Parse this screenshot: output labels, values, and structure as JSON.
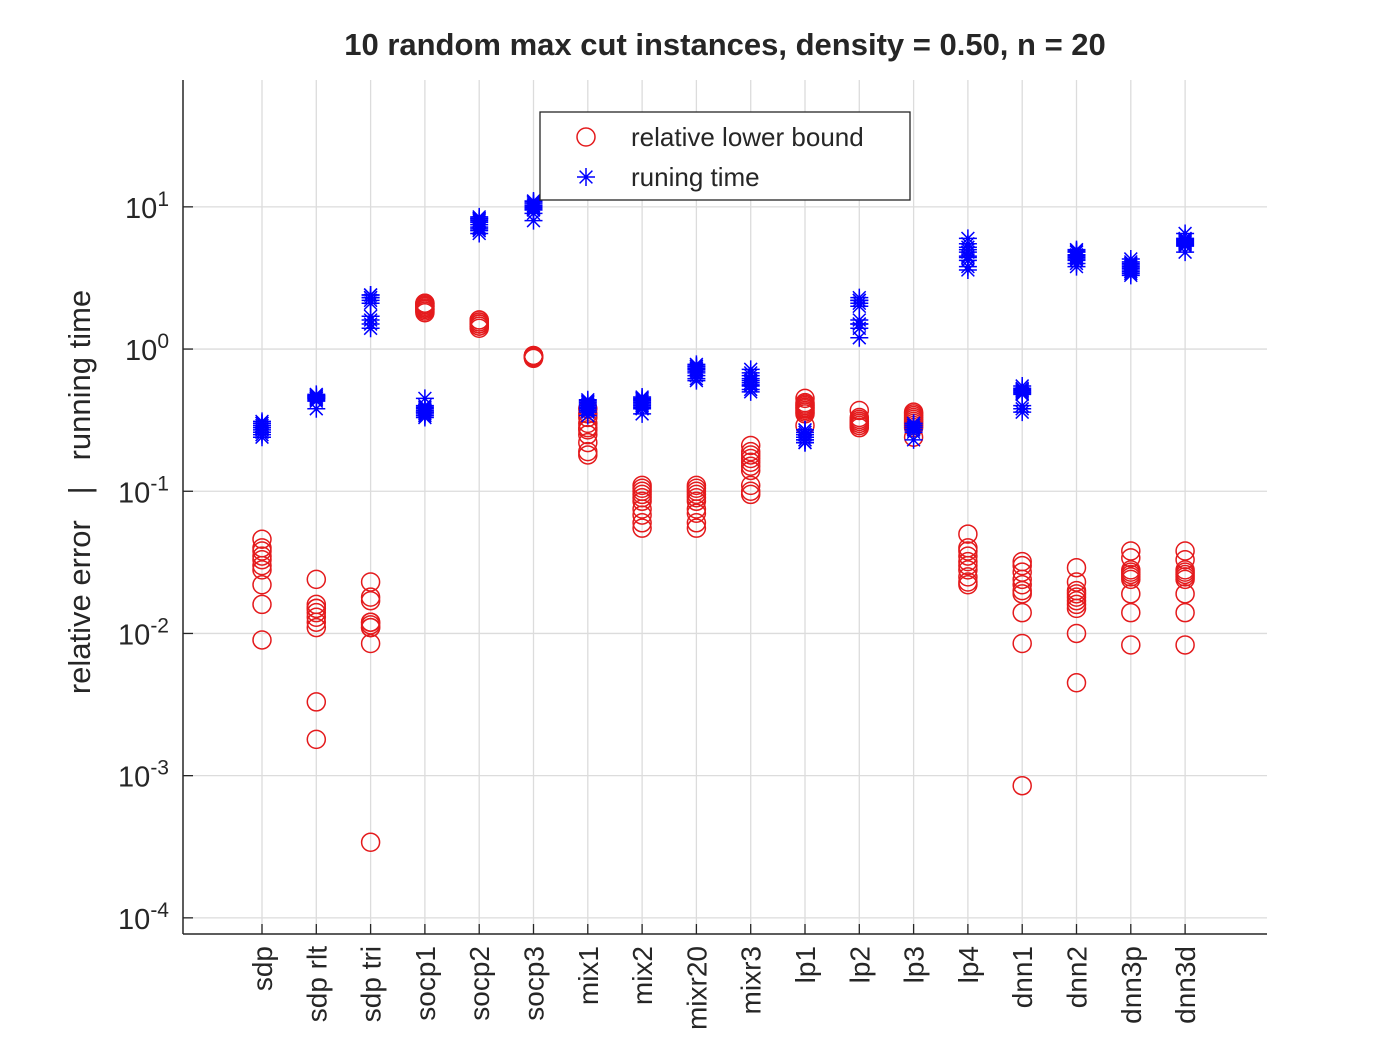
{
  "chart_data": {
    "type": "scatter",
    "title": "10 random max cut instances, density = 0.50, n = 20",
    "ylabel": "relative error   |   running time",
    "categories": [
      "sdp",
      "sdp rlt",
      "sdp tri",
      "socp1",
      "socp2",
      "socp3",
      "mix1",
      "mix2",
      "mixr20",
      "mixr3",
      "lp1",
      "lp2",
      "lp3",
      "lp4",
      "dnn1",
      "dnn2",
      "dnn3p",
      "dnn3d"
    ],
    "series": [
      {
        "name": "relative lower bound",
        "color": "#e41a1c",
        "marker": "circle",
        "values": [
          [
            0.046,
            0.04,
            0.035,
            0.033,
            0.03,
            0.028,
            0.022,
            0.016,
            0.009,
            0.038
          ],
          [
            0.024,
            0.016,
            0.015,
            0.014,
            0.013,
            0.012,
            0.011,
            0.0033,
            0.0018,
            0.015
          ],
          [
            0.023,
            0.018,
            0.017,
            0.012,
            0.011,
            0.012,
            0.011,
            0.0085,
            0.00034,
            0.0115
          ],
          [
            2.1,
            2.0,
            1.9,
            1.8,
            2.05,
            1.95,
            1.85,
            2.1,
            1.9,
            2.0
          ],
          [
            1.6,
            1.55,
            1.5,
            1.45,
            1.4,
            1.6,
            1.5,
            1.55,
            1.45,
            1.5
          ],
          [
            0.9,
            0.88,
            0.87,
            0.89,
            0.9,
            0.86,
            0.88,
            0.9,
            0.87,
            0.89
          ],
          [
            0.38,
            0.33,
            0.3,
            0.27,
            0.25,
            0.22,
            0.19,
            0.18,
            0.35,
            0.28
          ],
          [
            0.11,
            0.1,
            0.095,
            0.085,
            0.075,
            0.068,
            0.06,
            0.055,
            0.105,
            0.09
          ],
          [
            0.11,
            0.1,
            0.095,
            0.085,
            0.075,
            0.07,
            0.06,
            0.055,
            0.105,
            0.09
          ],
          [
            0.21,
            0.19,
            0.17,
            0.16,
            0.15,
            0.14,
            0.11,
            0.1,
            0.095,
            0.18
          ],
          [
            0.45,
            0.42,
            0.4,
            0.38,
            0.36,
            0.35,
            0.29,
            0.41,
            0.39,
            0.37
          ],
          [
            0.37,
            0.33,
            0.31,
            0.3,
            0.29,
            0.28,
            0.32,
            0.3,
            0.29,
            0.31
          ],
          [
            0.36,
            0.34,
            0.32,
            0.3,
            0.28,
            0.24,
            0.35,
            0.33,
            0.31,
            0.29
          ],
          [
            0.05,
            0.04,
            0.038,
            0.032,
            0.03,
            0.025,
            0.022,
            0.023,
            0.035,
            0.028
          ],
          [
            0.032,
            0.03,
            0.027,
            0.024,
            0.022,
            0.02,
            0.019,
            0.014,
            0.0085,
            0.00085
          ],
          [
            0.029,
            0.023,
            0.02,
            0.018,
            0.017,
            0.016,
            0.015,
            0.01,
            0.0045,
            0.019
          ],
          [
            0.038,
            0.034,
            0.028,
            0.026,
            0.025,
            0.024,
            0.019,
            0.014,
            0.0083,
            0.027
          ],
          [
            0.038,
            0.033,
            0.028,
            0.026,
            0.025,
            0.024,
            0.019,
            0.014,
            0.0083,
            0.027
          ]
        ]
      },
      {
        "name": "runing time",
        "color": "#0000ff",
        "marker": "asterisk",
        "values": [
          [
            0.3,
            0.28,
            0.24,
            0.27,
            0.29,
            0.31,
            0.26,
            0.28,
            0.25,
            0.3
          ],
          [
            0.46,
            0.47,
            0.44,
            0.38,
            0.45,
            0.48,
            0.43,
            0.46,
            0.45,
            0.47
          ],
          [
            2.4,
            2.3,
            2.2,
            1.7,
            1.6,
            1.4,
            2.3,
            2.1,
            1.5,
            2.4
          ],
          [
            0.45,
            0.38,
            0.36,
            0.33,
            0.4,
            0.37,
            0.35,
            0.39,
            0.36,
            0.34
          ],
          [
            8.5,
            8.0,
            7.5,
            7.0,
            6.5,
            8.2,
            7.8,
            7.2,
            6.8,
            8.3
          ],
          [
            11,
            10.5,
            10,
            9.5,
            9,
            8,
            10.2,
            9.8,
            10.8,
            9.6
          ],
          [
            0.44,
            0.42,
            0.4,
            0.38,
            0.36,
            0.43,
            0.41,
            0.39,
            0.37,
            0.34
          ],
          [
            0.46,
            0.44,
            0.42,
            0.4,
            0.38,
            0.35,
            0.45,
            0.43,
            0.41,
            0.39
          ],
          [
            0.78,
            0.75,
            0.72,
            0.7,
            0.62,
            0.6,
            0.76,
            0.73,
            0.68,
            0.65
          ],
          [
            0.72,
            0.65,
            0.6,
            0.55,
            0.52,
            0.5,
            0.62,
            0.58,
            0.56,
            0.68
          ],
          [
            0.27,
            0.25,
            0.23,
            0.22,
            0.26,
            0.24,
            0.27,
            0.25,
            0.22,
            0.23
          ],
          [
            2.3,
            2.2,
            2.0,
            1.6,
            1.5,
            1.4,
            1.2,
            2.1,
            1.5,
            2.2
          ],
          [
            0.3,
            0.29,
            0.28,
            0.27,
            0.26,
            0.23,
            0.29,
            0.28,
            0.27,
            0.3
          ],
          [
            6.0,
            5.5,
            5.0,
            4.5,
            4.2,
            3.8,
            3.6,
            5.2,
            4.8,
            4.4
          ],
          [
            0.55,
            0.52,
            0.5,
            0.48,
            0.4,
            0.38,
            0.36,
            0.53,
            0.51,
            0.49
          ],
          [
            5.0,
            4.8,
            4.6,
            4.4,
            4.2,
            4.0,
            3.8,
            4.9,
            4.5,
            4.3
          ],
          [
            4.3,
            4.0,
            3.8,
            3.6,
            3.4,
            3.3,
            4.1,
            3.9,
            3.7,
            3.5
          ],
          [
            6.5,
            6.0,
            5.8,
            5.6,
            5.5,
            5.3,
            4.8,
            5.7,
            5.4,
            5.9
          ]
        ]
      }
    ],
    "ylim": [
      7.7e-05,
      78
    ],
    "ylog": true,
    "yticks": [
      {
        "value": 0.0001,
        "label": "10^-4"
      },
      {
        "value": 0.001,
        "label": "10^-3"
      },
      {
        "value": 0.01,
        "label": "10^-2"
      },
      {
        "value": 0.1,
        "label": "10^-1"
      },
      {
        "value": 1,
        "label": "10^0"
      },
      {
        "value": 10,
        "label": "10^1"
      }
    ],
    "grid": true,
    "legend": "north"
  }
}
